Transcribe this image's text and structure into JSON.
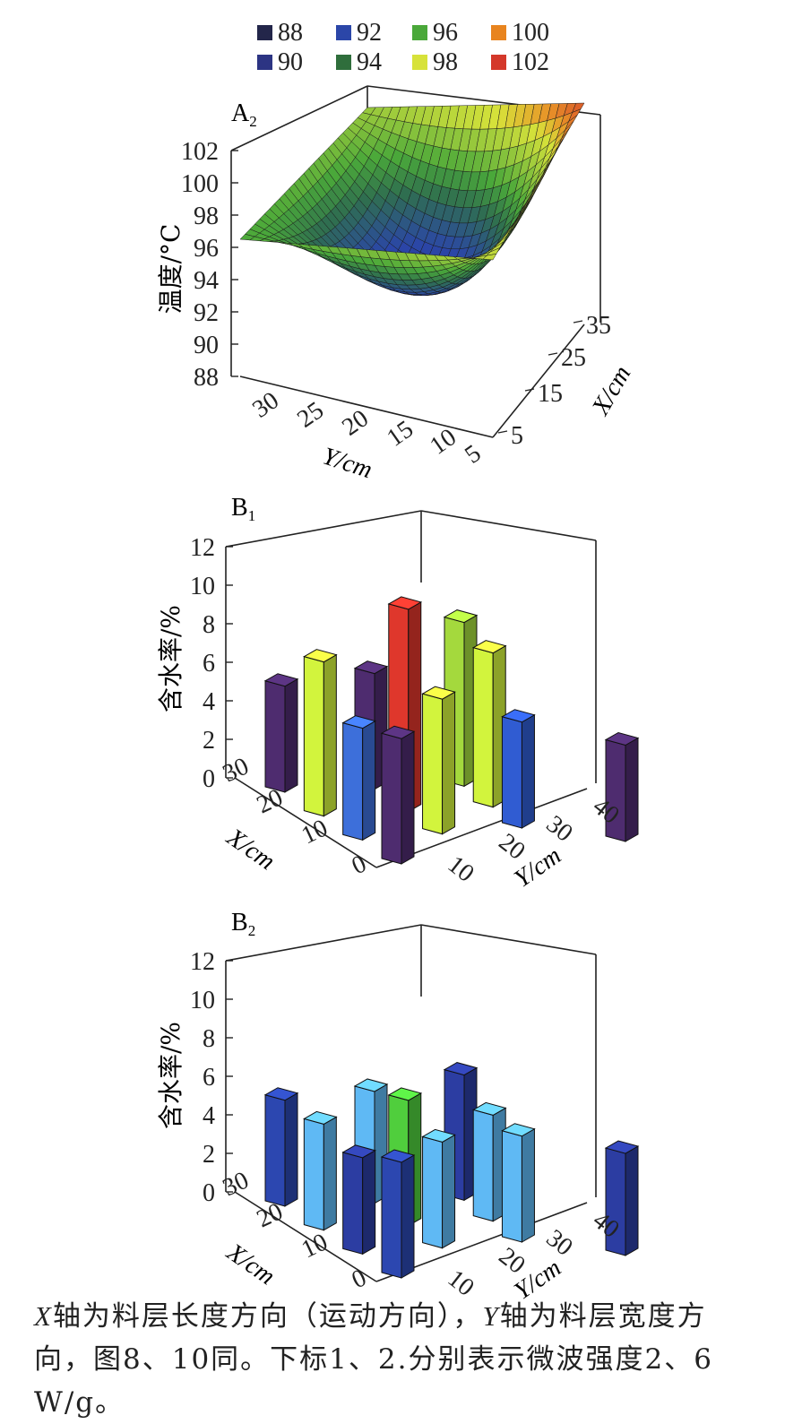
{
  "legend": {
    "items": [
      {
        "label": "88",
        "color": "#23264a"
      },
      {
        "label": "92",
        "color": "#2b46a8"
      },
      {
        "label": "96",
        "color": "#4aa83a"
      },
      {
        "label": "100",
        "color": "#e8841f"
      },
      {
        "label": "90",
        "color": "#2c3483"
      },
      {
        "label": "94",
        "color": "#2f6e3c"
      },
      {
        "label": "98",
        "color": "#d7e23a"
      },
      {
        "label": "102",
        "color": "#d4382a"
      }
    ]
  },
  "caption": {
    "x_letter": "X",
    "line1_a": "轴为料层长度方向（运动方向），",
    "y_letter": "Y",
    "line1_b": "轴为料层宽度方",
    "line2": "向，图8、10同。下标1、2.分别表示微波强度2、6 W/g。"
  },
  "chart_data": [
    {
      "type": "surface",
      "panel": "A",
      "panel_sub": "2",
      "zlabel": "温度/°C",
      "xlabel": "X/cm",
      "ylabel": "Y/cm",
      "zticks": [
        "88",
        "90",
        "92",
        "94",
        "96",
        "98",
        "100",
        "102"
      ],
      "xticks": [
        "5",
        "15",
        "25",
        "35"
      ],
      "yticks": [
        "30",
        "25",
        "20",
        "15",
        "10",
        "5"
      ],
      "zlim": [
        88,
        102
      ],
      "xlim": [
        5,
        35
      ],
      "ylim": [
        5,
        35
      ],
      "corner_values": {
        "x5_y35": 96.5,
        "x35_y35": 98.0,
        "x35_y5": 101.5,
        "x5_y5": 99.0,
        "min": 92.0
      }
    },
    {
      "type": "bar3d",
      "panel": "B",
      "panel_sub": "1",
      "zlabel": "含水率/%",
      "xlabel": "X/cm",
      "ylabel": "Y/cm",
      "zticks": [
        "0",
        "2",
        "4",
        "6",
        "8",
        "10",
        "12"
      ],
      "xticks": [
        "0",
        "10",
        "20",
        "30"
      ],
      "yticks": [
        "10",
        "20",
        "30",
        "40"
      ],
      "zlim": [
        0,
        12
      ],
      "bars": [
        {
          "x": 30,
          "y": 10,
          "value": 5.5,
          "color": "#4a2a6a"
        },
        {
          "x": 30,
          "y": 20,
          "value": 6.0,
          "color": "#4a2a6a"
        },
        {
          "x": 30,
          "y": 30,
          "value": 8.5,
          "color": "#9ccf3a"
        },
        {
          "x": 20,
          "y": 10,
          "value": 8.0,
          "color": "#c8e83a"
        },
        {
          "x": 20,
          "y": 20,
          "value": 10.5,
          "color": "#d4342a"
        },
        {
          "x": 20,
          "y": 30,
          "value": 8.0,
          "color": "#c8e83a"
        },
        {
          "x": 10,
          "y": 10,
          "value": 5.8,
          "color": "#3a6ad0"
        },
        {
          "x": 10,
          "y": 20,
          "value": 7.0,
          "color": "#c8e83a"
        },
        {
          "x": 10,
          "y": 30,
          "value": 5.5,
          "color": "#2e58c8"
        },
        {
          "x": 0,
          "y": 10,
          "value": 6.5,
          "color": "#4a2a6a"
        },
        {
          "x": 0,
          "y": 40,
          "value": 5.0,
          "color": "#4a2a6a"
        }
      ]
    },
    {
      "type": "bar3d",
      "panel": "B",
      "panel_sub": "2",
      "zlabel": "含水率/%",
      "xlabel": "X/cm",
      "ylabel": "Y/cm",
      "zticks": [
        "0",
        "2",
        "4",
        "6",
        "8",
        "10",
        "12"
      ],
      "xticks": [
        "0",
        "10",
        "20",
        "30"
      ],
      "yticks": [
        "10",
        "20",
        "30",
        "40"
      ],
      "zlim": [
        0,
        12
      ],
      "bars": [
        {
          "x": 30,
          "y": 10,
          "value": 5.5,
          "color": "#2a44a8"
        },
        {
          "x": 30,
          "y": 20,
          "value": 5.8,
          "color": "#5ab0e8"
        },
        {
          "x": 30,
          "y": 30,
          "value": 6.5,
          "color": "#2a3a9a"
        },
        {
          "x": 20,
          "y": 10,
          "value": 5.5,
          "color": "#5ab0e8"
        },
        {
          "x": 20,
          "y": 20,
          "value": 6.5,
          "color": "#4cc43a"
        },
        {
          "x": 20,
          "y": 30,
          "value": 5.5,
          "color": "#5ab0e8"
        },
        {
          "x": 10,
          "y": 10,
          "value": 5.0,
          "color": "#2a3a9a"
        },
        {
          "x": 10,
          "y": 20,
          "value": 5.5,
          "color": "#5ab0e8"
        },
        {
          "x": 10,
          "y": 30,
          "value": 5.5,
          "color": "#5ab0e8"
        },
        {
          "x": 0,
          "y": 10,
          "value": 6.0,
          "color": "#2a44a8"
        },
        {
          "x": 0,
          "y": 40,
          "value": 5.3,
          "color": "#2a3a9a"
        }
      ]
    }
  ]
}
